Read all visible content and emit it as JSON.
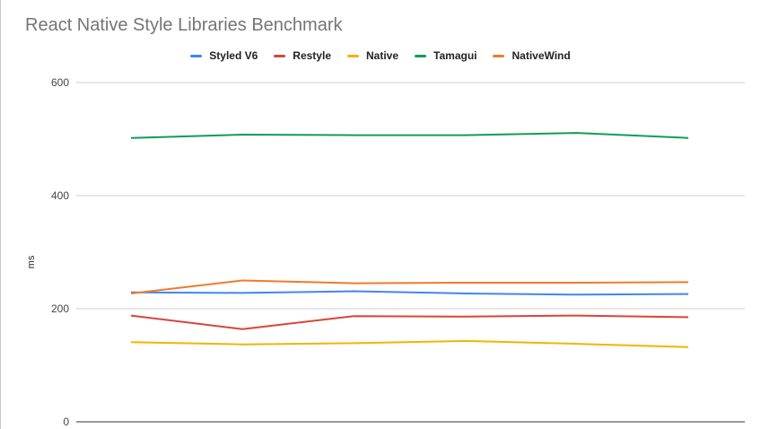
{
  "chart_data": {
    "type": "line",
    "title": "React Native Style Libraries Benchmark",
    "xlabel": "",
    "ylabel": "ms",
    "ylim": [
      0,
      600
    ],
    "yticks": [
      0,
      200,
      400,
      600
    ],
    "grid": true,
    "legend_position": "top",
    "x": [
      1,
      2,
      3,
      4,
      5,
      6
    ],
    "series": [
      {
        "name": "Styled V6",
        "color": "#4285f4",
        "values": [
          229,
          228,
          231,
          227,
          225,
          226
        ]
      },
      {
        "name": "Restyle",
        "color": "#db4437",
        "values": [
          188,
          164,
          187,
          186,
          188,
          185
        ]
      },
      {
        "name": "Native",
        "color": "#f4b400",
        "values": [
          141,
          137,
          139,
          143,
          138,
          132
        ]
      },
      {
        "name": "Tamagui",
        "color": "#0f9d58",
        "values": [
          502,
          508,
          507,
          507,
          511,
          502
        ]
      },
      {
        "name": "NativeWind",
        "color": "#f07b2a",
        "values": [
          227,
          250,
          245,
          246,
          246,
          247
        ]
      }
    ]
  }
}
